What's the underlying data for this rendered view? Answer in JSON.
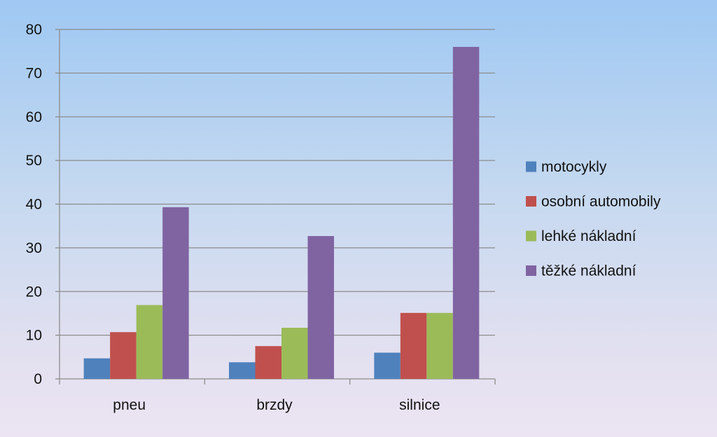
{
  "chart_data": {
    "type": "bar",
    "title": "",
    "xlabel": "",
    "ylabel": "",
    "categories": [
      "pneu",
      "brzdy",
      "silnice"
    ],
    "ylim": [
      0,
      80
    ],
    "yticks": [
      "0",
      "10",
      "20",
      "30",
      "40",
      "50",
      "60",
      "70",
      "80"
    ],
    "grid": true,
    "legend_position": "right",
    "series": [
      {
        "name": "motocykly",
        "color": "#4f81bd",
        "values": [
          4.7,
          3.8,
          6.0
        ]
      },
      {
        "name": "osobní automobily",
        "color": "#c0504d",
        "values": [
          10.7,
          7.5,
          15.1
        ]
      },
      {
        "name": "lehké nákladní",
        "color": "#9bbb59",
        "values": [
          16.9,
          11.7,
          15.1
        ]
      },
      {
        "name": "těžké nákladní",
        "color": "#8064a2",
        "values": [
          39.3,
          32.7,
          76.0
        ]
      }
    ]
  }
}
